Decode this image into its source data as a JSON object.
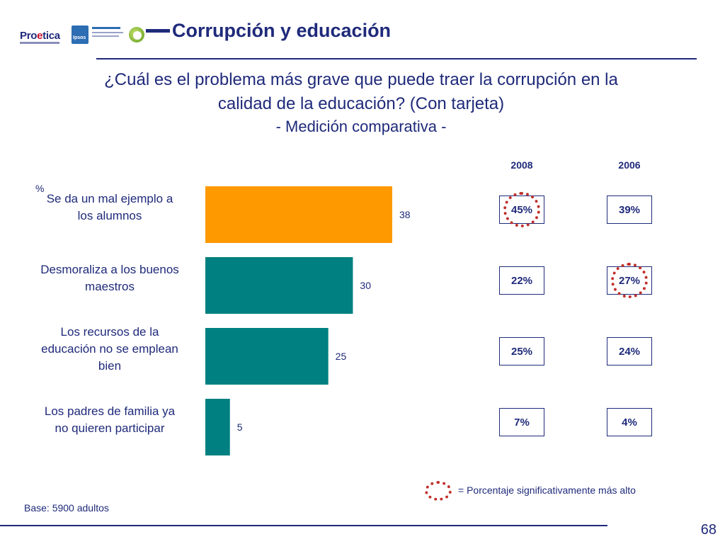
{
  "header": {
    "title": "Corrupción y educación",
    "logos": [
      {
        "name": "Proetica",
        "icon": "proetica-logo"
      },
      {
        "name": "Ipsos APOYO",
        "icon": "ipsos-logo"
      },
      {
        "name": "CONFIEP",
        "icon": "confiep-logo"
      }
    ]
  },
  "question": {
    "line1": "¿Cuál es el problema más grave que puede traer la corrupción en la",
    "line2": "calidad de la educación? (Con tarjeta)",
    "subtitle": "- Medición comparativa -"
  },
  "comparison": {
    "columns": [
      "2008",
      "2006"
    ],
    "rows": [
      {
        "v2008": "45%",
        "v2006": "39%",
        "highlight": "2008"
      },
      {
        "v2008": "22%",
        "v2006": "27%",
        "highlight": "2006"
      },
      {
        "v2008": "25%",
        "v2006": "24%",
        "highlight": ""
      },
      {
        "v2008": "7%",
        "v2006": "4%",
        "highlight": ""
      }
    ],
    "highlight_color": "#c0302a"
  },
  "chart_data": {
    "type": "bar",
    "orientation": "horizontal",
    "unit_label": "%",
    "categories": [
      [
        "Se da un mal ejemplo a",
        "los alumnos"
      ],
      [
        "Desmoraliza a los buenos",
        "maestros"
      ],
      [
        "Los recursos de la",
        "educación no se emplean",
        "bien"
      ],
      [
        "Los padres de familia ya",
        "no quieren participar"
      ]
    ],
    "values": [
      38,
      30,
      25,
      5
    ],
    "data_labels": [
      "38",
      "30",
      "25",
      "5"
    ],
    "colors": [
      "#ff9900",
      "#008080",
      "#008080",
      "#008080"
    ],
    "xlim": [
      0,
      38
    ],
    "grid": false,
    "legend": "none"
  },
  "legend": {
    "text": "= Porcentaje significativamente más alto"
  },
  "footer": {
    "base": "Base: 5900 adultos",
    "page_number": "68"
  }
}
